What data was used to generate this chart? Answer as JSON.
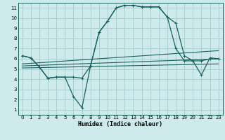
{
  "xlabel": "Humidex (Indice chaleur)",
  "bg_color": "#ceeaea",
  "grid_color": "#a8d0d0",
  "line_color": "#1a6060",
  "xlim": [
    -0.5,
    23.5
  ],
  "ylim": [
    0.5,
    11.5
  ],
  "xticks": [
    0,
    1,
    2,
    3,
    4,
    5,
    6,
    7,
    8,
    9,
    10,
    11,
    12,
    13,
    14,
    15,
    16,
    17,
    18,
    19,
    20,
    21,
    22,
    23
  ],
  "yticks": [
    1,
    2,
    3,
    4,
    5,
    6,
    7,
    8,
    9,
    10,
    11
  ],
  "line1_x": [
    0,
    1,
    2,
    3,
    4,
    5,
    6,
    7,
    8,
    9,
    10,
    11,
    12,
    13,
    14,
    15,
    16,
    17,
    18,
    19,
    20,
    21,
    22,
    23
  ],
  "line1_y": [
    6.3,
    6.1,
    5.2,
    4.1,
    4.2,
    4.2,
    4.2,
    4.1,
    5.3,
    8.6,
    9.7,
    11.0,
    11.25,
    11.25,
    11.1,
    11.1,
    11.1,
    10.1,
    9.5,
    6.3,
    5.8,
    5.8,
    6.0,
    6.0
  ],
  "line2_x": [
    0,
    1,
    2,
    3,
    4,
    5,
    6,
    7,
    8,
    9,
    10,
    11,
    12,
    13,
    14,
    15,
    16,
    17,
    18,
    19,
    20,
    21,
    22,
    23
  ],
  "line2_y": [
    6.3,
    6.1,
    5.2,
    4.1,
    4.2,
    4.2,
    2.3,
    1.2,
    5.3,
    8.6,
    9.7,
    11.0,
    11.25,
    11.25,
    11.1,
    11.1,
    11.1,
    10.1,
    7.0,
    5.8,
    5.8,
    4.4,
    6.1,
    6.0
  ],
  "line3_x": [
    0,
    23
  ],
  "line3_y": [
    5.5,
    6.8
  ],
  "line4_x": [
    0,
    23
  ],
  "line4_y": [
    5.3,
    6.0
  ],
  "line5_x": [
    0,
    23
  ],
  "line5_y": [
    5.1,
    5.5
  ]
}
